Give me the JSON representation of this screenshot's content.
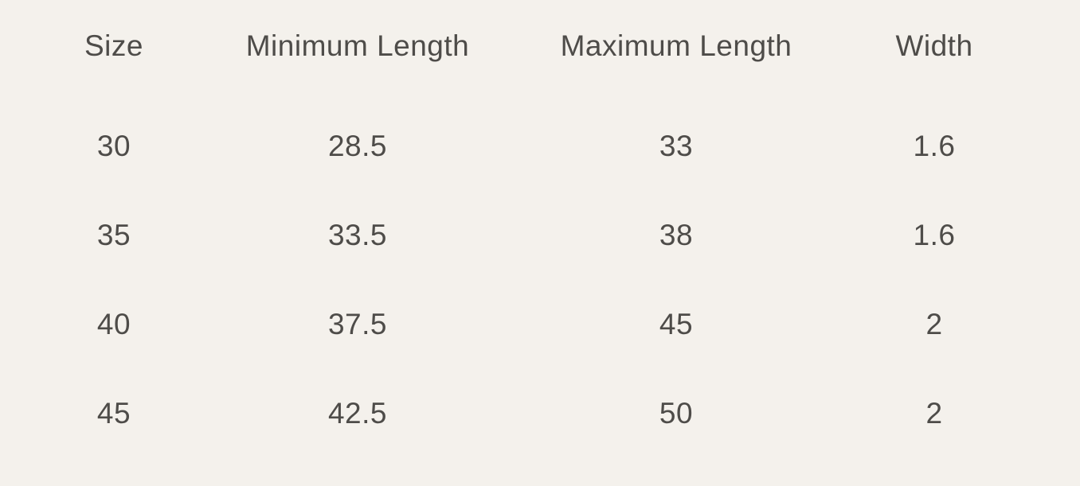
{
  "colors": {
    "background": "#f4f1ec",
    "text": "#4e4c49"
  },
  "chart_data": {
    "type": "table",
    "columns": [
      "Size",
      "Minimum Length",
      "Maximum Length",
      "Width"
    ],
    "rows": [
      [
        "30",
        "28.5",
        "33",
        "1.6"
      ],
      [
        "35",
        "33.5",
        "38",
        "1.6"
      ],
      [
        "40",
        "37.5",
        "45",
        "2"
      ],
      [
        "45",
        "42.5",
        "50",
        "2"
      ]
    ]
  }
}
